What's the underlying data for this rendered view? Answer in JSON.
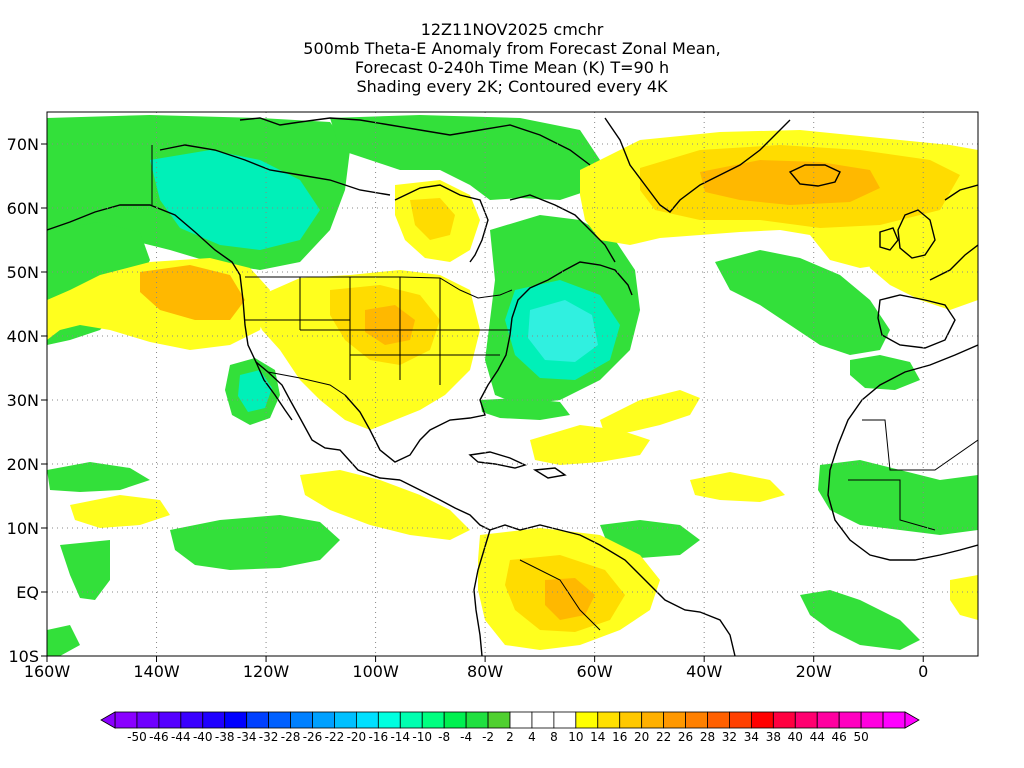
{
  "title": {
    "line1": "12Z11NOV2025 cmchr",
    "line2": "500mb Theta-E Anomaly from Forecast Zonal Mean,",
    "line3": "Forecast 0-240h Time Mean (K) T=90 h",
    "line4": "Shading every 2K; Contoured every 4K"
  },
  "lat_labels": [
    "70N",
    "60N",
    "50N",
    "40N",
    "30N",
    "20N",
    "10N",
    "EQ",
    "10S"
  ],
  "lon_labels": [
    "160W",
    "140W",
    "120W",
    "100W",
    "80W",
    "60W",
    "40W",
    "20W",
    "0"
  ],
  "colorbar": {
    "colors": [
      "#8a00ff",
      "#6f00ff",
      "#5500ff",
      "#3a00ff",
      "#1f00ff",
      "#0000ff",
      "#0040ff",
      "#0060ff",
      "#0080ff",
      "#00a0ff",
      "#00c0ff",
      "#00e0ff",
      "#00ffe0",
      "#00ffb0",
      "#00ff80",
      "#00f050",
      "#20e040",
      "#50d030",
      "#ffffff",
      "#ffffff",
      "#ffffff",
      "#ffff00",
      "#ffe000",
      "#ffc800",
      "#ffb000",
      "#ff9800",
      "#ff8000",
      "#ff6000",
      "#ff4000",
      "#ff0000",
      "#ff0040",
      "#ff0070",
      "#ff00a0",
      "#ff00c0",
      "#ff00e0",
      "#ff00ff"
    ],
    "labels": [
      "-50",
      "-46",
      "-44",
      "-40",
      "-38",
      "-34",
      "-32",
      "-28",
      "-26",
      "-22",
      "-20",
      "-16",
      "-14",
      "-10",
      "-8",
      "-4",
      "-2",
      "2",
      "4",
      "8",
      "10",
      "14",
      "16",
      "20",
      "22",
      "26",
      "28",
      "32",
      "34",
      "38",
      "40",
      "44",
      "46",
      "50"
    ]
  },
  "shading": {
    "green": "#33e03a",
    "teal": "#00f0b8",
    "cyan": "#30f0e0",
    "yellow": "#ffff1e",
    "gold": "#ffdc00",
    "orange": "#ffb800",
    "dkorange": "#ff9a00"
  }
}
